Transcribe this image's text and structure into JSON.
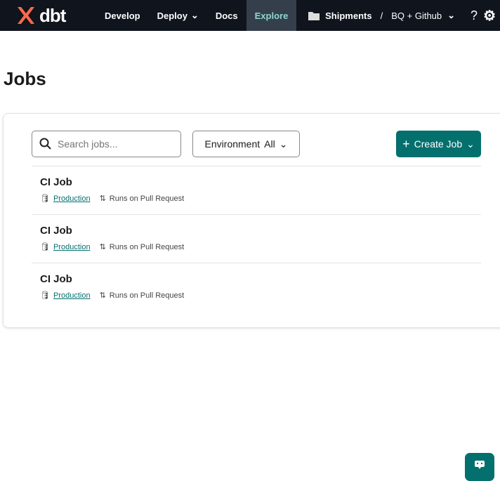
{
  "nav": {
    "logo": "dbt",
    "items": [
      "Develop",
      "Deploy",
      "Docs",
      "Explore"
    ],
    "active": "Explore",
    "account": "Shipments",
    "project": "BQ + Github"
  },
  "page": {
    "title": "Jobs"
  },
  "toolbar": {
    "search_placeholder": "Search jobs...",
    "env_label": "Environment",
    "env_value": "All",
    "create_label": "Create Job"
  },
  "jobs": [
    {
      "name": "CI Job",
      "environment": "Production",
      "trigger": "Runs on Pull Request"
    },
    {
      "name": "CI Job",
      "environment": "Production",
      "trigger": "Runs on Pull Request"
    },
    {
      "name": "CI Job",
      "environment": "Production",
      "trigger": "Runs on Pull Request"
    }
  ],
  "colors": {
    "accent": "#04706e",
    "nav_bg": "#0f141d",
    "brand": "#ff694a"
  }
}
